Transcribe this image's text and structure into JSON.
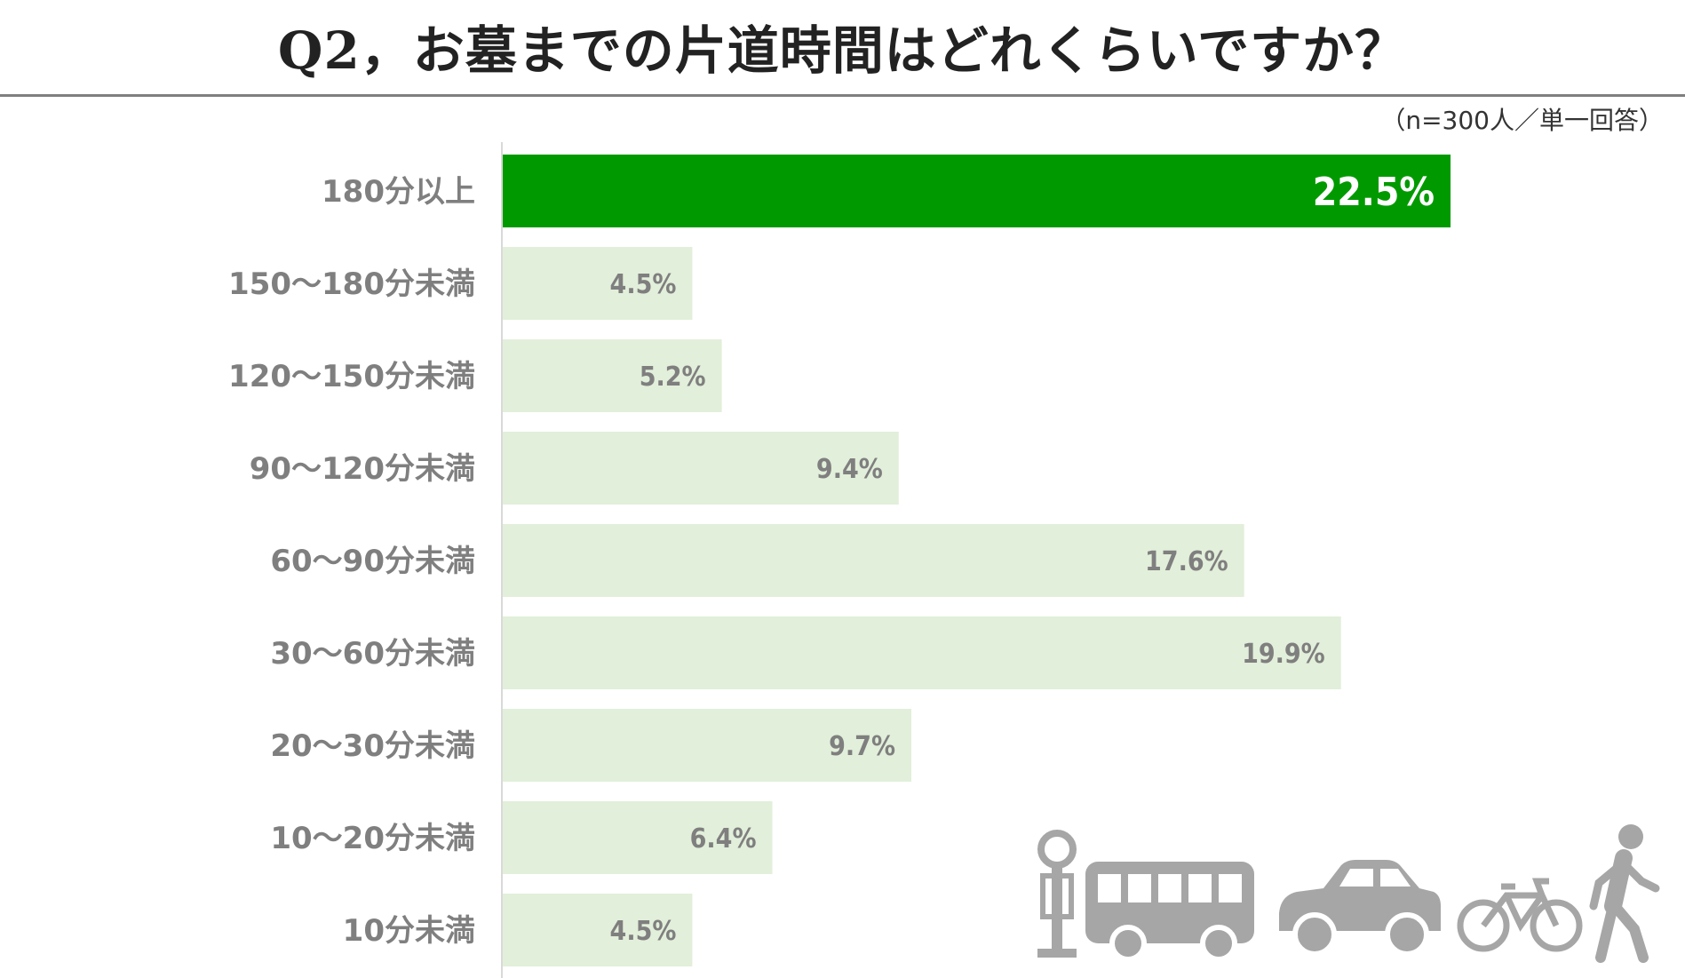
{
  "header": {
    "title": "Q2，お墓までの片道時間はどれくらいですか？",
    "note": "（n=300人／単一回答）"
  },
  "colors": {
    "highlight": "#009a00",
    "bar": "#e2efda",
    "label": "#7f7f7f",
    "icons": "#a6a6a6"
  },
  "icons": [
    "bus-stop-icon",
    "bus-icon",
    "car-icon",
    "bicycle-icon",
    "walking-person-icon"
  ],
  "chart_data": {
    "type": "bar",
    "orientation": "horizontal",
    "title": "Q2，お墓までの片道時間はどれくらいですか？",
    "subtitle": "（n=300人／単一回答）",
    "categories": [
      "180分以上",
      "150～180分未満",
      "120～150分未満",
      "90～120分未満",
      "60～90分未満",
      "30～60分未満",
      "20～30分未満",
      "10～20分未満",
      "10分未満"
    ],
    "values": [
      22.5,
      4.5,
      5.2,
      9.4,
      17.6,
      19.9,
      9.7,
      6.4,
      4.5
    ],
    "value_labels": [
      "22.5%",
      "4.5%",
      "5.2%",
      "9.4%",
      "17.6%",
      "19.9%",
      "9.7%",
      "6.4%",
      "4.5%"
    ],
    "highlight_index": 0,
    "xlim": [
      0,
      25
    ],
    "grid": false,
    "legend": "none"
  }
}
